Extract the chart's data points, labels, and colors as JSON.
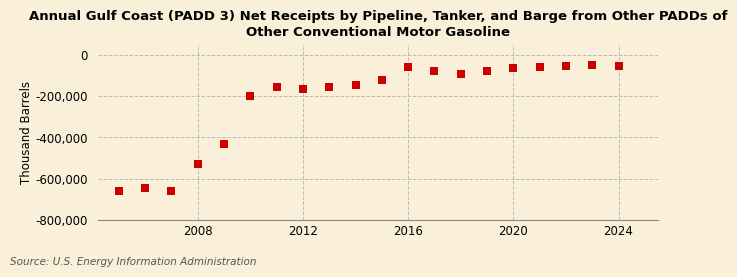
{
  "title": "Annual Gulf Coast (PADD 3) Net Receipts by Pipeline, Tanker, and Barge from Other PADDs of\nOther Conventional Motor Gasoline",
  "ylabel": "Thousand Barrels",
  "source": "Source: U.S. Energy Information Administration",
  "background_color": "#faefd8",
  "plot_bg_color": "#faefd8",
  "years": [
    2005,
    2006,
    2007,
    2008,
    2009,
    2010,
    2011,
    2012,
    2013,
    2014,
    2015,
    2016,
    2017,
    2018,
    2019,
    2020,
    2021,
    2022,
    2023,
    2024
  ],
  "values": [
    -660000,
    -645000,
    -660000,
    -530000,
    -430000,
    -200000,
    -155000,
    -165000,
    -155000,
    -145000,
    -125000,
    -60000,
    -80000,
    -95000,
    -80000,
    -65000,
    -60000,
    -55000,
    -50000,
    -55000
  ],
  "ylim": [
    -800000,
    50000
  ],
  "xlim": [
    2004.2,
    2025.5
  ],
  "yticks": [
    0,
    -200000,
    -400000,
    -600000,
    -800000
  ],
  "xticks": [
    2008,
    2012,
    2016,
    2020,
    2024
  ],
  "marker_color": "#cc0000",
  "marker_size": 6,
  "grid_color": "#bbbbbb",
  "title_fontsize": 9.5,
  "axis_fontsize": 8.5,
  "source_fontsize": 7.5
}
